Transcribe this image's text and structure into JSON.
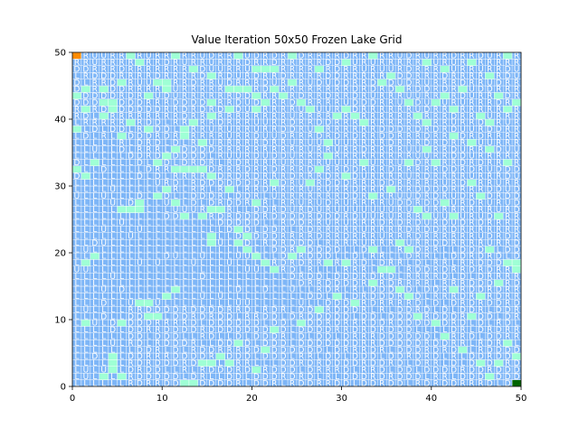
{
  "chart_data": {
    "type": "heatmap",
    "title": "Value Iteration 50x50 Frozen Lake Grid",
    "xlabel": "",
    "ylabel": "",
    "grid_size": 50,
    "xlim": [
      0,
      50
    ],
    "ylim": [
      0,
      50
    ],
    "x_ticks": [
      0,
      10,
      20,
      30,
      40,
      50
    ],
    "y_ticks": [
      0,
      10,
      20,
      30,
      40,
      50
    ],
    "cell_colors": {
      "frozen": "#7eb6f7",
      "hole": "#9fffd5",
      "start": "#ff8c00",
      "goal": "#006400",
      "gridline": "#ffffff"
    },
    "start_cell": [
      0,
      49
    ],
    "goal_cell": [
      49,
      0
    ],
    "policy_letters": [
      "L",
      "D",
      "R",
      "U"
    ],
    "policy_description_note": "Each non-hole cell displays its greedy policy action letter; left/top region mostly L, lower/diagonal region mostly D, upper-right mostly R",
    "hole_cells": [
      [
        1,
        44
      ],
      [
        0,
        43
      ],
      [
        3,
        44
      ],
      [
        5,
        45
      ],
      [
        3,
        42
      ],
      [
        4,
        42
      ],
      [
        1,
        41
      ],
      [
        3,
        40
      ],
      [
        4,
        41
      ],
      [
        8,
        43
      ],
      [
        10,
        45
      ],
      [
        10,
        44
      ],
      [
        5,
        37
      ],
      [
        6,
        39
      ],
      [
        8,
        38
      ],
      [
        9,
        33
      ],
      [
        10,
        34
      ],
      [
        11,
        32
      ],
      [
        12,
        32
      ],
      [
        13,
        32
      ],
      [
        14,
        32
      ],
      [
        15,
        31
      ],
      [
        12,
        37
      ],
      [
        13,
        39
      ],
      [
        15,
        40
      ],
      [
        15,
        42
      ],
      [
        17,
        41
      ],
      [
        18,
        44
      ],
      [
        19,
        44
      ],
      [
        20,
        43
      ],
      [
        21,
        42
      ],
      [
        20,
        41
      ],
      [
        22,
        44
      ],
      [
        24,
        45
      ],
      [
        25,
        42
      ],
      [
        26,
        41
      ],
      [
        27,
        38
      ],
      [
        28,
        36
      ],
      [
        29,
        40
      ],
      [
        30,
        41
      ],
      [
        31,
        40
      ],
      [
        32,
        39
      ],
      [
        34,
        45
      ],
      [
        35,
        46
      ],
      [
        36,
        44
      ],
      [
        37,
        42
      ],
      [
        38,
        40
      ],
      [
        39,
        39
      ],
      [
        40,
        42
      ],
      [
        41,
        43
      ],
      [
        42,
        41
      ],
      [
        43,
        44
      ],
      [
        45,
        40
      ],
      [
        46,
        39
      ],
      [
        47,
        43
      ],
      [
        48,
        41
      ],
      [
        49,
        42
      ],
      [
        20,
        47
      ],
      [
        21,
        47
      ],
      [
        22,
        47
      ],
      [
        23,
        43
      ],
      [
        5,
        26
      ],
      [
        6,
        26
      ],
      [
        7,
        27
      ],
      [
        7,
        26
      ],
      [
        9,
        28
      ],
      [
        10,
        29
      ],
      [
        11,
        27
      ],
      [
        12,
        25
      ],
      [
        14,
        25
      ],
      [
        15,
        26
      ],
      [
        15,
        22
      ],
      [
        15,
        21
      ],
      [
        18,
        23
      ],
      [
        19,
        22
      ],
      [
        18,
        21
      ],
      [
        19,
        20
      ],
      [
        20,
        19
      ],
      [
        21,
        18
      ],
      [
        22,
        17
      ],
      [
        24,
        19
      ],
      [
        25,
        20
      ],
      [
        28,
        18
      ],
      [
        30,
        18
      ],
      [
        33,
        20
      ],
      [
        34,
        17
      ],
      [
        35,
        17
      ],
      [
        36,
        21
      ],
      [
        37,
        20
      ],
      [
        38,
        26
      ],
      [
        39,
        25
      ],
      [
        41,
        27
      ],
      [
        42,
        25
      ],
      [
        44,
        30
      ],
      [
        45,
        28
      ],
      [
        47,
        25
      ],
      [
        48,
        18
      ],
      [
        49,
        17
      ],
      [
        46,
        20
      ],
      [
        1,
        18
      ],
      [
        2,
        19
      ],
      [
        1,
        9
      ],
      [
        7,
        12
      ],
      [
        8,
        12
      ],
      [
        10,
        13
      ],
      [
        11,
        14
      ],
      [
        8,
        10
      ],
      [
        9,
        10
      ],
      [
        5,
        9
      ],
      [
        4,
        4
      ],
      [
        4,
        3
      ],
      [
        4,
        2
      ],
      [
        3,
        1
      ],
      [
        5,
        1
      ],
      [
        12,
        0
      ],
      [
        13,
        0
      ],
      [
        14,
        3
      ],
      [
        15,
        3
      ],
      [
        16,
        4
      ],
      [
        17,
        3
      ],
      [
        18,
        6
      ],
      [
        20,
        2
      ],
      [
        21,
        5
      ],
      [
        22,
        8
      ],
      [
        25,
        9
      ],
      [
        27,
        11
      ],
      [
        29,
        13
      ],
      [
        31,
        12
      ],
      [
        33,
        15
      ],
      [
        36,
        14
      ],
      [
        37,
        13
      ],
      [
        38,
        10
      ],
      [
        40,
        9
      ],
      [
        41,
        7
      ],
      [
        43,
        5
      ],
      [
        45,
        3
      ],
      [
        46,
        1
      ],
      [
        47,
        3
      ],
      [
        48,
        6
      ],
      [
        49,
        4
      ],
      [
        44,
        10
      ],
      [
        45,
        13
      ],
      [
        47,
        15
      ],
      [
        49,
        18
      ],
      [
        42,
        14
      ],
      [
        26,
        30
      ],
      [
        27,
        32
      ],
      [
        28,
        34
      ],
      [
        30,
        31
      ],
      [
        32,
        33
      ],
      [
        33,
        28
      ],
      [
        35,
        29
      ],
      [
        37,
        33
      ],
      [
        39,
        35
      ],
      [
        40,
        33
      ],
      [
        42,
        37
      ],
      [
        44,
        36
      ],
      [
        46,
        35
      ],
      [
        48,
        33
      ],
      [
        22,
        30
      ],
      [
        20,
        27
      ],
      [
        17,
        29
      ],
      [
        16,
        26
      ],
      [
        14,
        36
      ],
      [
        12,
        38
      ],
      [
        11,
        35
      ],
      [
        9,
        45
      ],
      [
        6,
        49
      ],
      [
        7,
        48
      ],
      [
        13,
        47
      ],
      [
        15,
        46
      ],
      [
        17,
        44
      ],
      [
        11,
        49
      ],
      [
        18,
        49
      ],
      [
        24,
        49
      ],
      [
        27,
        47
      ],
      [
        30,
        48
      ],
      [
        33,
        49
      ],
      [
        39,
        48
      ],
      [
        41,
        47
      ],
      [
        44,
        48
      ],
      [
        46,
        46
      ],
      [
        48,
        49
      ],
      [
        0,
        32
      ],
      [
        1,
        31
      ],
      [
        2,
        33
      ],
      [
        0,
        38
      ]
    ]
  }
}
